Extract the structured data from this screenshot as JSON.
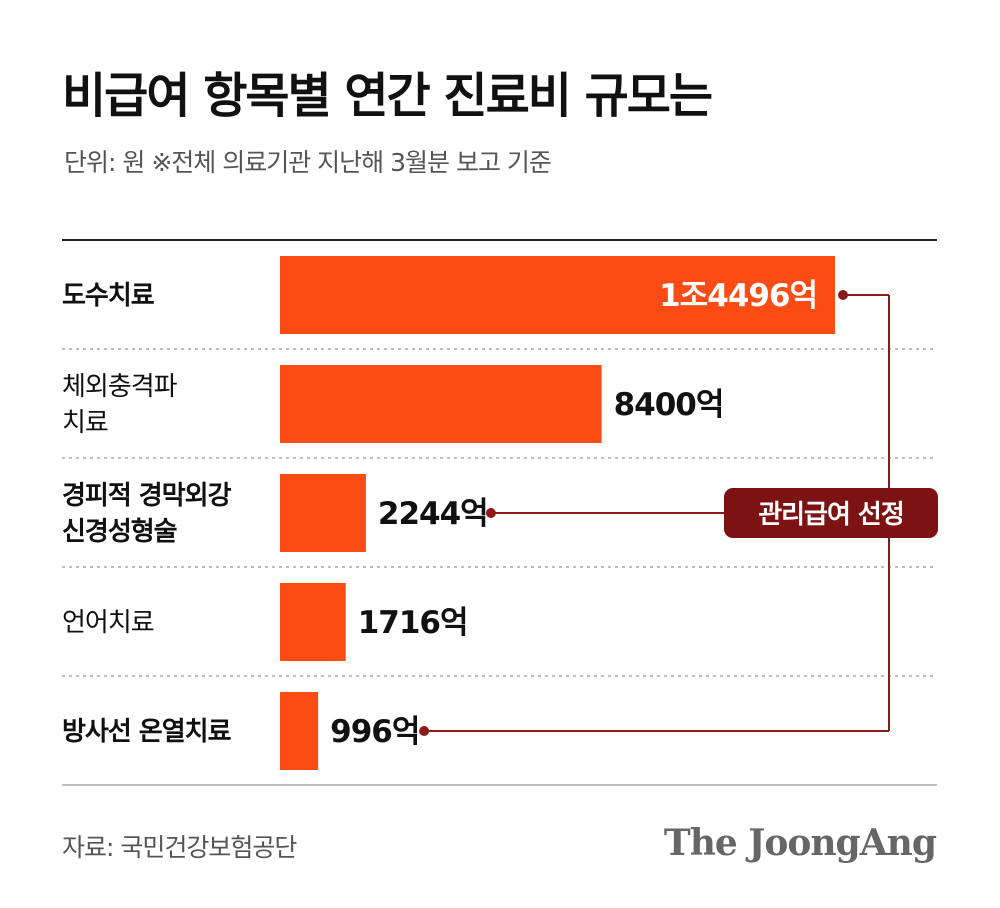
{
  "header": {
    "title": "비급여 항목별 연간 진료비 규모는",
    "subtitle": "단위: 원   ※전체 의료기관 지난해 3월분 보고 기준"
  },
  "footer": {
    "source": "자료: 국민건강보험공단",
    "logo": "The JoongAng"
  },
  "colors": {
    "bar": "#fc4c15",
    "accent": "#8b1a1a",
    "annotation_fill": "#7c1212",
    "separator": "#bdbdbd",
    "top_rule": "#222222"
  },
  "chart_data": {
    "type": "bar",
    "orientation": "horizontal",
    "categories": [
      [
        "도수치료"
      ],
      [
        "체외충격파",
        "치료"
      ],
      [
        "경피적 경막외강",
        "신경성형술"
      ],
      [
        "언어치료"
      ],
      [
        "방사선 온열치료"
      ]
    ],
    "category_bold": [
      true,
      false,
      true,
      false,
      true
    ],
    "values": [
      14496,
      8400,
      2244,
      1716,
      996
    ],
    "value_labels": [
      "1조4496억",
      "8400억",
      "2244억",
      "1716억",
      "996억"
    ],
    "unit": "억",
    "xlim": [
      0,
      14496
    ],
    "grid": false,
    "annotation": {
      "label": "관리급여 선정",
      "targets": [
        0,
        2,
        4
      ]
    }
  }
}
